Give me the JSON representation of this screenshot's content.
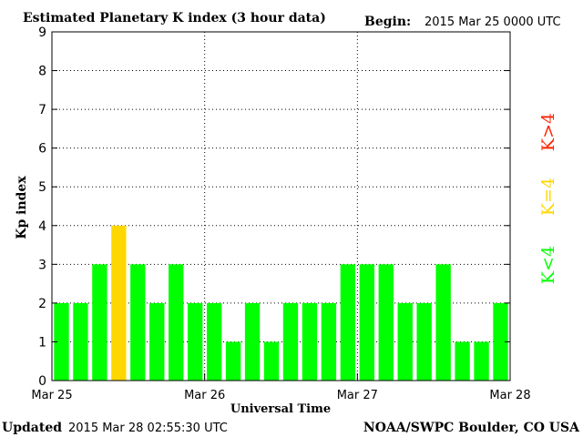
{
  "header": {
    "title": "Estimated Planetary K index (3 hour data)",
    "begin_label": "Begin:",
    "begin_value": "2015 Mar 25 0000 UTC"
  },
  "footer": {
    "updated_label": "Updated",
    "updated_value": "2015 Mar 28 02:55:30 UTC",
    "credit": "NOAA/SWPC Boulder, CO USA"
  },
  "legend": {
    "high": "K>4",
    "equal": "K=4",
    "low": "K<4"
  },
  "colors": {
    "low": "#00ff00",
    "equal": "#ffd700",
    "high": "#ff2200",
    "axis": "#000000",
    "grid": "#000000"
  },
  "chart_data": {
    "type": "bar",
    "title": "Estimated Planetary K index (3 hour data)",
    "xlabel": "Universal Time",
    "ylabel": "Kp index",
    "ylim": [
      0,
      9
    ],
    "yticks": [
      "0",
      "1",
      "2",
      "3",
      "4",
      "5",
      "6",
      "7",
      "8",
      "9"
    ],
    "xticks": [
      "Mar 25",
      "Mar 26",
      "Mar 27",
      "Mar 28"
    ],
    "grid": true,
    "values": [
      2,
      2,
      3,
      4,
      3,
      2,
      3,
      2,
      2,
      1,
      2,
      1,
      2,
      2,
      2,
      3,
      3,
      3,
      2,
      2,
      3,
      1,
      1,
      2
    ]
  }
}
